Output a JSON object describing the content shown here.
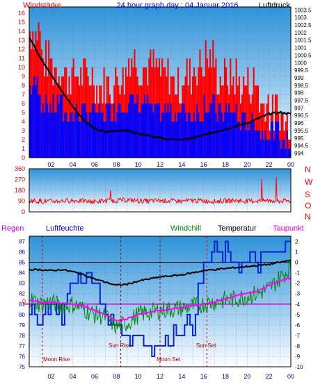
{
  "chart_data": [
    {
      "type": "line",
      "title": "24 hour graph day : 04 Januar 2016",
      "left_label": "Windstärke",
      "right_label": "Luftdruck",
      "x_ticks": [
        "02",
        "04",
        "06",
        "08",
        "10",
        "12",
        "14",
        "16",
        "18",
        "20",
        "22",
        "00"
      ],
      "y_left_ticks": [
        "0",
        "1",
        "2",
        "3",
        "4",
        "5",
        "6",
        "7",
        "8",
        "9",
        "10",
        "11",
        "12",
        "13",
        "14",
        "15",
        "16"
      ],
      "y_left_range": [
        0,
        16.7
      ],
      "y_right_ticks": [
        "994",
        "994.5",
        "995",
        "995.5",
        "996",
        "996.5",
        "997",
        "997.5",
        "998",
        "998.5",
        "999",
        "999.5",
        "1000",
        "1000.5",
        "1001",
        "1001.5",
        "1002",
        "1002.5",
        "1003",
        "1003.5"
      ],
      "y_right_range": [
        993.7,
        1003.7
      ],
      "series": [
        {
          "color": "#ff0000",
          "kind": "bars-gust",
          "values_hourly": [
            14,
            11,
            10,
            9,
            9,
            9,
            8,
            8,
            9,
            11,
            10,
            10,
            9,
            8,
            9,
            10,
            11,
            9,
            9,
            8,
            8,
            6,
            5,
            4
          ]
        },
        {
          "color": "#0000ff",
          "kind": "bars-mean",
          "values_hourly": [
            8,
            6,
            6,
            5,
            5,
            5,
            5,
            5,
            6,
            6,
            6,
            5,
            5,
            5,
            5,
            5,
            6,
            5,
            5,
            4,
            4,
            3,
            3,
            2
          ]
        },
        {
          "color": "#000000",
          "kind": "pressure",
          "x": [
            0,
            1,
            2,
            3,
            4,
            5,
            6,
            7,
            8,
            9,
            10,
            11,
            12,
            13,
            14,
            15,
            16,
            17,
            18,
            19,
            20,
            21,
            22,
            23,
            24
          ],
          "values": [
            1001.7,
            1000.4,
            999.2,
            998.1,
            997.1,
            996.2,
            995.6,
            995.4,
            995.5,
            995.5,
            995.3,
            995.2,
            995.0,
            994.9,
            994.9,
            995.0,
            995.2,
            995.4,
            995.6,
            995.8,
            996.0,
            996.3,
            996.6,
            996.7,
            996.6
          ]
        }
      ]
    },
    {
      "type": "line",
      "y_ticks": [
        "0",
        "90",
        "180",
        "270",
        "360"
      ],
      "y_range": [
        0,
        360
      ],
      "right_label": [
        "N",
        "W",
        "S",
        "O",
        "N"
      ],
      "series": [
        {
          "color": "#ff0000",
          "x": [
            0,
            1,
            2,
            3,
            4,
            5,
            6,
            7,
            8,
            9,
            10,
            11,
            12,
            13,
            14,
            15,
            16,
            17,
            18,
            19,
            20,
            21,
            22,
            23,
            24
          ],
          "values": [
            95,
            90,
            88,
            92,
            95,
            90,
            85,
            92,
            95,
            100,
            92,
            90,
            95,
            92,
            90,
            95,
            92,
            88,
            92,
            95,
            90,
            92,
            95,
            90,
            92
          ]
        }
      ]
    },
    {
      "type": "line",
      "labels": [
        "Regen",
        "Luftfeuchte",
        "Windchill",
        "Temperatur",
        "Taupunkt"
      ],
      "y_left_ticks": [
        "75",
        "76",
        "77",
        "78",
        "79",
        "80",
        "81",
        "82",
        "83",
        "84",
        "85",
        "86",
        "87"
      ],
      "y_left_range": [
        75,
        87.5
      ],
      "y_right_ticks": [
        "2",
        "1",
        "0",
        "-1",
        "-2",
        "-3",
        "-4",
        "-5",
        "-6",
        "-7",
        "-8",
        "-9",
        "-10"
      ],
      "y_right_range": [
        -10,
        2.5
      ],
      "rain_mark": "0",
      "events": [
        "Sun Rise",
        "Sun Set",
        "Moon Rise",
        "Moon Set"
      ],
      "series": [
        {
          "name": "Luftfeuchte",
          "color": "#0022dd",
          "x": [
            0,
            1,
            2,
            3,
            4,
            5,
            6,
            7,
            8,
            9,
            10,
            11,
            12,
            13,
            14,
            15,
            16,
            17,
            18,
            19,
            20,
            21,
            22,
            23,
            24
          ],
          "values": [
            80,
            80,
            81,
            80,
            83,
            84,
            83,
            80,
            79,
            78,
            78,
            77,
            77,
            78,
            79,
            79,
            85,
            86,
            86,
            85,
            85,
            85,
            86,
            86,
            87
          ]
        },
        {
          "name": "Temperatur",
          "color": "#000000",
          "x": [
            0,
            1,
            2,
            3,
            4,
            5,
            6,
            7,
            8,
            9,
            10,
            11,
            12,
            13,
            14,
            15,
            16,
            17,
            18,
            19,
            20,
            21,
            22,
            23,
            24
          ],
          "values": [
            -0.7,
            -0.7,
            -0.8,
            -0.7,
            -0.9,
            -1.2,
            -1.6,
            -1.9,
            -2.2,
            -2.1,
            -1.8,
            -1.6,
            -1.4,
            -1.3,
            -1.2,
            -1.0,
            -0.8,
            -0.7,
            -0.6,
            -0.5,
            -0.4,
            -0.3,
            -0.2,
            0.0,
            0.2
          ]
        },
        {
          "name": "Windchill",
          "color": "#008800",
          "x": [
            0,
            1,
            2,
            3,
            4,
            5,
            6,
            7,
            8,
            9,
            10,
            11,
            12,
            13,
            14,
            15,
            16,
            17,
            18,
            19,
            20,
            21,
            22,
            23,
            24
          ],
          "values": [
            -3.5,
            -4.0,
            -3.8,
            -4.2,
            -4.0,
            -4.5,
            -5.0,
            -5.2,
            -6.2,
            -5.8,
            -5.0,
            -4.8,
            -4.6,
            -4.5,
            -4.4,
            -4.2,
            -4.0,
            -3.8,
            -3.6,
            -3.5,
            -3.2,
            -3.0,
            -2.5,
            -1.5,
            -0.5
          ]
        },
        {
          "name": "Taupunkt",
          "color": "#ff00ff",
          "x": [
            0,
            1,
            2,
            3,
            4,
            5,
            6,
            7,
            8,
            9,
            10,
            11,
            12,
            13,
            14,
            15,
            16,
            17,
            18,
            19,
            20,
            21,
            22,
            23,
            24
          ],
          "values": [
            -3.6,
            -3.8,
            -3.8,
            -3.9,
            -4.0,
            -4.2,
            -4.6,
            -5.0,
            -5.6,
            -5.4,
            -5.0,
            -4.8,
            -4.6,
            -4.5,
            -4.3,
            -4.2,
            -4.0,
            -3.8,
            -3.5,
            -3.2,
            -3.0,
            -2.7,
            -2.2,
            -1.8,
            -1.5
          ]
        }
      ]
    }
  ]
}
